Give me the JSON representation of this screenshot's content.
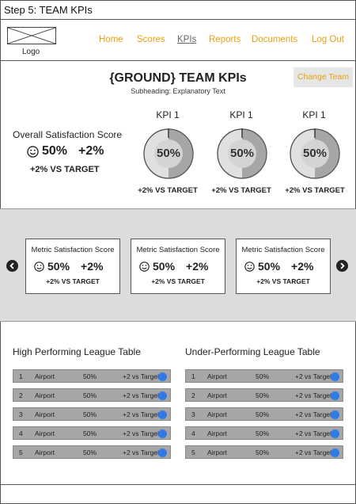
{
  "step_title": "Step 5: TEAM KPIs",
  "logo_label": "Logo",
  "nav": [
    "Home",
    "Scores",
    "KPIs",
    "Reports",
    "Documents",
    "Log Out"
  ],
  "page": {
    "title": "{GROUND} TEAM KPIs",
    "subheading": "Subheading: Explanatory Text",
    "change_team": "Change Team"
  },
  "overall": {
    "label": "Overall Satisfaction Score",
    "percent": "50%",
    "change": "+2%",
    "target": "+2% VS TARGET"
  },
  "kpis": [
    {
      "title": "KPI 1",
      "value": "50%",
      "fill": 0.5,
      "target": "+2% VS TARGET"
    },
    {
      "title": "KPI 1",
      "value": "50%",
      "fill": 0.5,
      "target": "+2% VS TARGET"
    },
    {
      "title": "KPI 1",
      "value": "50%",
      "fill": 0.5,
      "target": "+2% VS TARGET"
    }
  ],
  "metrics": [
    {
      "title": "Metric Satisfaction Score",
      "percent": "50%",
      "change": "+2%",
      "target": "+2% VS TARGET"
    },
    {
      "title": "Metric Satisfaction Score",
      "percent": "50%",
      "change": "+2%",
      "target": "+2% VS TARGET"
    },
    {
      "title": "Metric Satisfaction Score",
      "percent": "50%",
      "change": "+2%",
      "target": "+2% VS TARGET"
    }
  ],
  "high_table": {
    "title": "High Performing League Table",
    "rows": [
      {
        "rank": "1",
        "name": "Airport",
        "score": "50%",
        "target": "+2 vs Target"
      },
      {
        "rank": "2",
        "name": "Airport",
        "score": "50%",
        "target": "+2 vs Target"
      },
      {
        "rank": "3",
        "name": "Airport",
        "score": "50%",
        "target": "+2 vs Target"
      },
      {
        "rank": "4",
        "name": "Airport",
        "score": "50%",
        "target": "+2 vs Target"
      },
      {
        "rank": "5",
        "name": "Airport",
        "score": "50%",
        "target": "+2 vs Target"
      }
    ]
  },
  "under_table": {
    "title": "Under-Performing League Table",
    "rows": [
      {
        "rank": "1",
        "name": "Airport",
        "score": "50%",
        "target": "+2 vs Target"
      },
      {
        "rank": "2",
        "name": "Airport",
        "score": "50%",
        "target": "+2 vs Target"
      },
      {
        "rank": "3",
        "name": "Airport",
        "score": "50%",
        "target": "+2 vs Target"
      },
      {
        "rank": "4",
        "name": "Airport",
        "score": "50%",
        "target": "+2 vs Target"
      },
      {
        "rank": "5",
        "name": "Airport",
        "score": "50%",
        "target": "+2 vs Target"
      }
    ]
  },
  "colors": {
    "nav_link": "#e8a00f",
    "status_dot": "#2f7be8",
    "carousel_bg": "#dcdcdc",
    "row_bg": "#a6a6a6"
  }
}
